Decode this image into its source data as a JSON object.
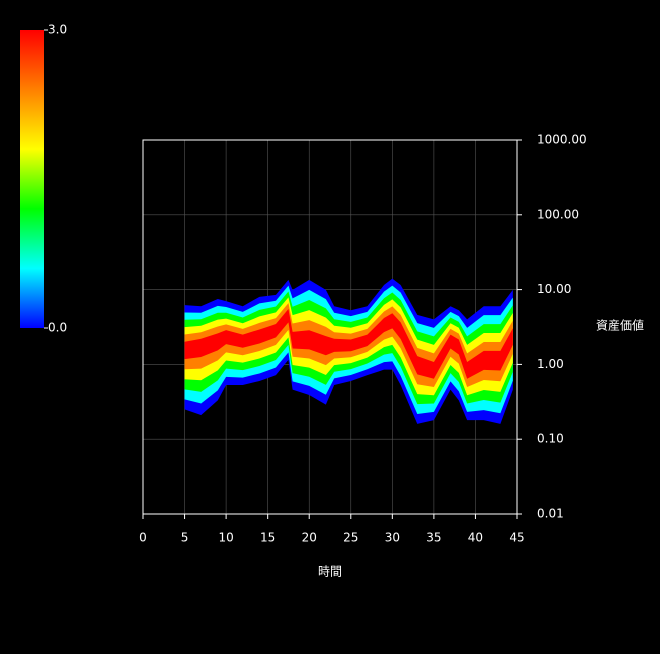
{
  "chart_data": {
    "type": "density-band",
    "x_label": "時間",
    "y_label": "資産価値",
    "x": [
      5,
      7,
      9,
      10,
      12,
      14,
      16,
      17.5,
      18,
      20,
      22,
      23,
      25,
      27,
      29,
      30,
      31,
      33,
      35,
      37,
      38,
      39,
      41,
      43,
      44.5
    ],
    "high": [
      6.2,
      6,
      7.5,
      7,
      6,
      8,
      8.5,
      13.5,
      9.9,
      13.5,
      9.9,
      6,
      5.3,
      6,
      11.5,
      14,
      11.5,
      4.6,
      4,
      6,
      5.3,
      4,
      6,
      6,
      9.9
    ],
    "mid": [
      1.6,
      1.8,
      2.1,
      2.4,
      2.1,
      2.4,
      2.9,
      4.6,
      2.1,
      2.1,
      1.8,
      1.8,
      1.8,
      2.1,
      3.4,
      3.9,
      2.9,
      1,
      0.83,
      2.1,
      1.8,
      0.83,
      1.15,
      1.15,
      2.4
    ],
    "low": [
      0.25,
      0.21,
      0.33,
      0.53,
      0.53,
      0.6,
      0.72,
      1.15,
      0.46,
      0.39,
      0.29,
      0.53,
      0.6,
      0.72,
      0.85,
      0.85,
      0.53,
      0.16,
      0.18,
      0.46,
      0.33,
      0.18,
      0.18,
      0.16,
      0.46
    ],
    "xlim": [
      0,
      45
    ],
    "xticks": [
      0,
      5,
      10,
      15,
      20,
      25,
      30,
      35,
      40,
      45
    ],
    "ylim": [
      0.01,
      1000
    ],
    "log_y": true,
    "yticks": [
      {
        "value": 0.01,
        "label": "0.01"
      },
      {
        "value": 0.1,
        "label": "0.10"
      },
      {
        "value": 1,
        "label": "1.00"
      },
      {
        "value": 10,
        "label": "10.00"
      },
      {
        "value": 100,
        "label": "100.00"
      },
      {
        "value": 1000,
        "label": "1000.00"
      }
    ],
    "grid": true,
    "colorbar": {
      "clim": [
        0,
        3
      ],
      "ticks": [
        {
          "value": 0,
          "label": "0.0"
        },
        {
          "value": 3,
          "label": "3.0"
        }
      ],
      "colors": [
        "#0000ff",
        "#00ffff",
        "#00ff00",
        "#ffff00",
        "#ff8000",
        "#ff0000"
      ]
    }
  }
}
